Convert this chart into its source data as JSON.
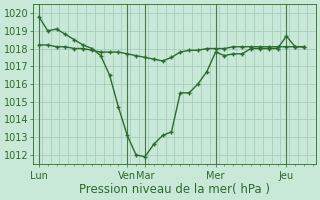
{
  "title": "",
  "xlabel": "Pression niveau de la mer( hPa )",
  "bg_color": "#c8e8d8",
  "grid_color": "#a0c8b8",
  "line_color": "#2d6a2d",
  "vline_color": "#4a7a4a",
  "ylim": [
    1011.5,
    1020.5
  ],
  "yticks": [
    1012,
    1013,
    1014,
    1015,
    1016,
    1017,
    1018,
    1019,
    1020
  ],
  "day_labels": [
    "Lun",
    "Ven",
    "Mar",
    "Mer",
    "Jeu"
  ],
  "day_x": [
    0,
    60,
    72,
    120,
    168
  ],
  "vline_x": [
    0,
    60,
    72,
    120,
    168
  ],
  "xlim": [
    -4,
    188
  ],
  "line1_x": [
    0,
    6,
    12,
    18,
    24,
    30,
    36,
    42,
    48,
    54,
    60,
    66,
    72,
    78,
    84,
    90,
    96,
    102,
    108,
    114,
    120,
    126,
    132,
    138,
    144,
    150,
    156,
    162,
    168,
    174,
    180
  ],
  "line1_y": [
    1019.8,
    1019.0,
    1019.1,
    1018.8,
    1018.5,
    1018.2,
    1018.0,
    1017.6,
    1016.5,
    1014.7,
    1013.1,
    1012.0,
    1011.9,
    1012.6,
    1013.1,
    1013.3,
    1015.5,
    1015.5,
    1016.0,
    1016.7,
    1017.8,
    1017.6,
    1017.7,
    1017.7,
    1018.0,
    1018.0,
    1018.0,
    1018.0,
    1018.7,
    1018.1,
    1018.1
  ],
  "line2_x": [
    0,
    6,
    12,
    18,
    24,
    30,
    36,
    42,
    48,
    54,
    60,
    66,
    72,
    78,
    84,
    90,
    96,
    102,
    108,
    114,
    120,
    126,
    132,
    138,
    144,
    150,
    156,
    162,
    168,
    174,
    180
  ],
  "line2_y": [
    1018.2,
    1018.2,
    1018.1,
    1018.1,
    1018.0,
    1018.0,
    1017.9,
    1017.8,
    1017.8,
    1017.8,
    1017.7,
    1017.6,
    1017.5,
    1017.4,
    1017.3,
    1017.5,
    1017.8,
    1017.9,
    1017.9,
    1018.0,
    1018.0,
    1018.0,
    1018.1,
    1018.1,
    1018.1,
    1018.1,
    1018.1,
    1018.1,
    1018.1,
    1018.1,
    1018.1
  ],
  "marker_size": 2.5,
  "line_width": 1.0,
  "xlabel_fontsize": 8.5,
  "tick_fontsize": 7
}
